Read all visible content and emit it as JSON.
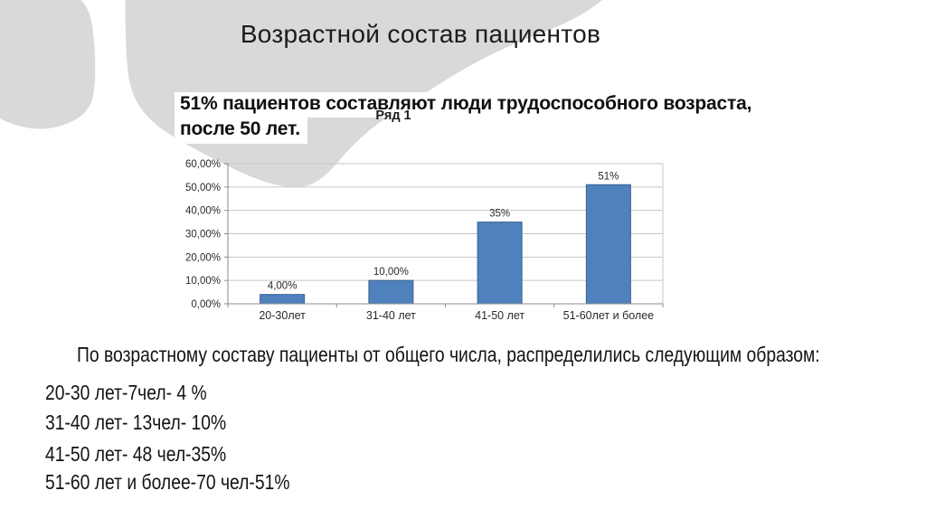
{
  "slide": {
    "title": "Возрастной состав пациентов",
    "callout_line1": "51% пациентов составляют люди трудоспособного возраста,",
    "callout_line2": "после 50 лет."
  },
  "chart_data": {
    "type": "bar",
    "title": "Ряд 1",
    "categories": [
      "20-30лет",
      "31-40 лет",
      "41-50 лет",
      "51-60лет и более"
    ],
    "series": [
      {
        "name": "Ряд 1",
        "values": [
          4,
          10,
          35,
          51
        ]
      }
    ],
    "value_labels": [
      "4,00%",
      "10,00%",
      "35%",
      "51%"
    ],
    "y_tick_values": [
      0,
      10,
      20,
      30,
      40,
      50,
      60
    ],
    "y_tick_labels": [
      "0,00%",
      "10,00%",
      "20,00%",
      "30,00%",
      "40,00%",
      "50,00%",
      "60,00%"
    ],
    "ylim": [
      0,
      60
    ],
    "xlabel": "",
    "ylabel": "",
    "grid": true,
    "legend": "none",
    "bar_color": "#4f81bd",
    "bar_border_color": "#3a6391"
  },
  "summary": {
    "intro": "По возрастному составу пациенты от общего числа, распределились следующим образом:",
    "items": [
      "20-30 лет-7чел- 4 %",
      "31-40 лет- 13чел- 10%",
      "41-50 лет- 48 чел-35%",
      "51-60 лет и более-70 чел-51%"
    ]
  },
  "colors": {
    "background": "#ffffff",
    "blob_gray": "#d9d9d9",
    "grid_line": "#c6c6c6",
    "axis_line": "#8c8c8c",
    "chart_text": "#2a2a2a"
  }
}
